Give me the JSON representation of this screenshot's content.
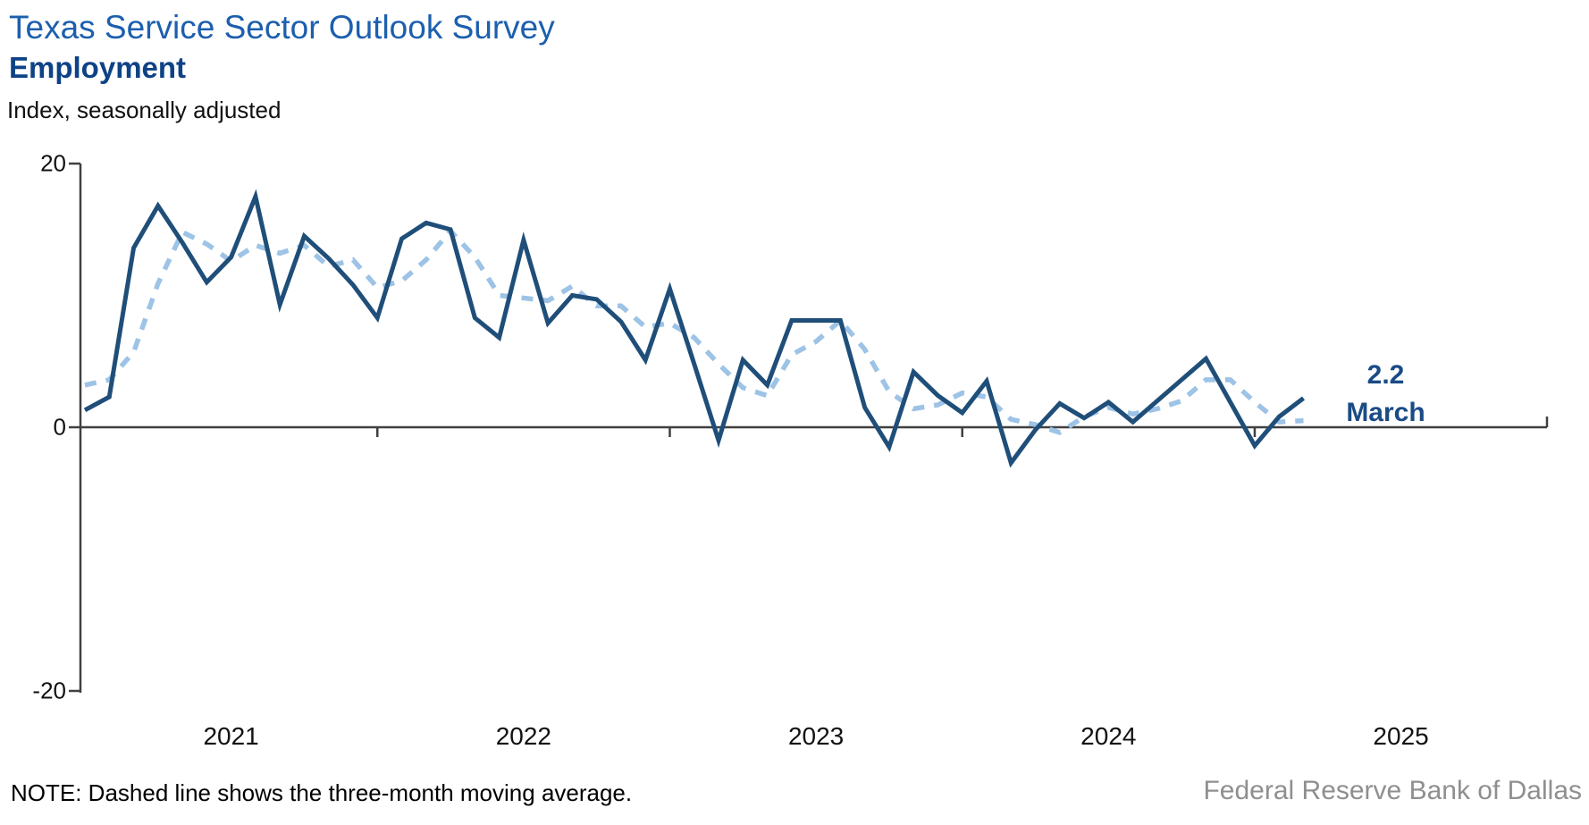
{
  "header": {
    "title": "Texas Service Sector Outlook Survey",
    "subtitle": "Employment",
    "axis_unit_label": "Index, seasonally adjusted"
  },
  "annotation": {
    "value": "2.2",
    "month": "March"
  },
  "note": "NOTE: Dashed line shows the three-month moving average.",
  "footer": {
    "brand": "Federal Reserve Bank of Dallas"
  },
  "colors": {
    "title_blue": "#1C5FAE",
    "subtitle_blue": "#0E4286",
    "solid_line": "#1F4E79",
    "dashed_line": "#9DC3E6",
    "annotation_navy": "#1A4B85",
    "axis": "#404040",
    "footer_gray": "#8f8f8f"
  },
  "chart_data": {
    "type": "line",
    "title": "Texas Service Sector Outlook Survey — Employment",
    "ylabel": "Index, seasonally adjusted",
    "ylim": [
      -20,
      20
    ],
    "grid": false,
    "y_ticks": [
      {
        "label": "20",
        "value": 20
      },
      {
        "label": "0",
        "value": 0
      },
      {
        "label": "-20",
        "value": -20
      }
    ],
    "x_tick_years": [
      "2021",
      "2022",
      "2023",
      "2024",
      "2025"
    ],
    "x": [
      "Jan 2021",
      "Feb 2021",
      "Mar 2021",
      "Apr 2021",
      "May 2021",
      "Jun 2021",
      "Jul 2021",
      "Aug 2021",
      "Sep 2021",
      "Oct 2021",
      "Nov 2021",
      "Dec 2021",
      "Jan 2022",
      "Feb 2022",
      "Mar 2022",
      "Apr 2022",
      "May 2022",
      "Jun 2022",
      "Jul 2022",
      "Aug 2022",
      "Sep 2022",
      "Oct 2022",
      "Nov 2022",
      "Dec 2022",
      "Jan 2023",
      "Feb 2023",
      "Mar 2023",
      "Apr 2023",
      "May 2023",
      "Jun 2023",
      "Jul 2023",
      "Aug 2023",
      "Sep 2023",
      "Oct 2023",
      "Nov 2023",
      "Dec 2023",
      "Jan 2024",
      "Feb 2024",
      "Mar 2024",
      "Apr 2024",
      "May 2024",
      "Jun 2024",
      "Jul 2024",
      "Aug 2024",
      "Sep 2024",
      "Oct 2024",
      "Nov 2024",
      "Dec 2024",
      "Jan 2025",
      "Feb 2025",
      "Mar 2025"
    ],
    "series": [
      {
        "name": "Employment index (monthly)",
        "style": "solid",
        "values": [
          1.3,
          2.3,
          13.6,
          16.8,
          14.0,
          11.0,
          12.9,
          17.5,
          9.3,
          14.5,
          12.8,
          10.8,
          8.3,
          14.3,
          15.5,
          15.0,
          8.3,
          6.8,
          14.2,
          7.9,
          10.0,
          9.7,
          8.0,
          5.1,
          10.5,
          4.8,
          -1.0,
          5.1,
          3.2,
          8.1,
          8.1,
          8.1,
          1.5,
          -1.5,
          4.2,
          2.4,
          1.1,
          3.5,
          -2.7,
          -0.2,
          1.8,
          0.7,
          1.9,
          0.4,
          2.0,
          3.6,
          5.2,
          1.9,
          -1.4,
          0.8,
          2.2
        ]
      },
      {
        "name": "Three-month moving average",
        "style": "dashed",
        "values": [
          3.2,
          3.6,
          5.7,
          10.9,
          14.8,
          13.9,
          12.6,
          13.8,
          13.2,
          13.8,
          12.2,
          12.7,
          10.6,
          11.1,
          12.7,
          14.9,
          12.9,
          10.0,
          9.8,
          9.6,
          10.7,
          9.2,
          9.2,
          7.6,
          7.9,
          6.8,
          4.8,
          3.0,
          2.4,
          5.5,
          6.5,
          8.1,
          5.9,
          2.7,
          1.4,
          1.7,
          2.6,
          2.3,
          0.6,
          0.2,
          -0.4,
          0.8,
          1.5,
          1.0,
          1.4,
          2.0,
          3.6,
          3.6,
          1.9,
          0.4,
          0.5
        ]
      }
    ],
    "last_point_label": {
      "value": 2.2,
      "month": "March 2025"
    }
  }
}
